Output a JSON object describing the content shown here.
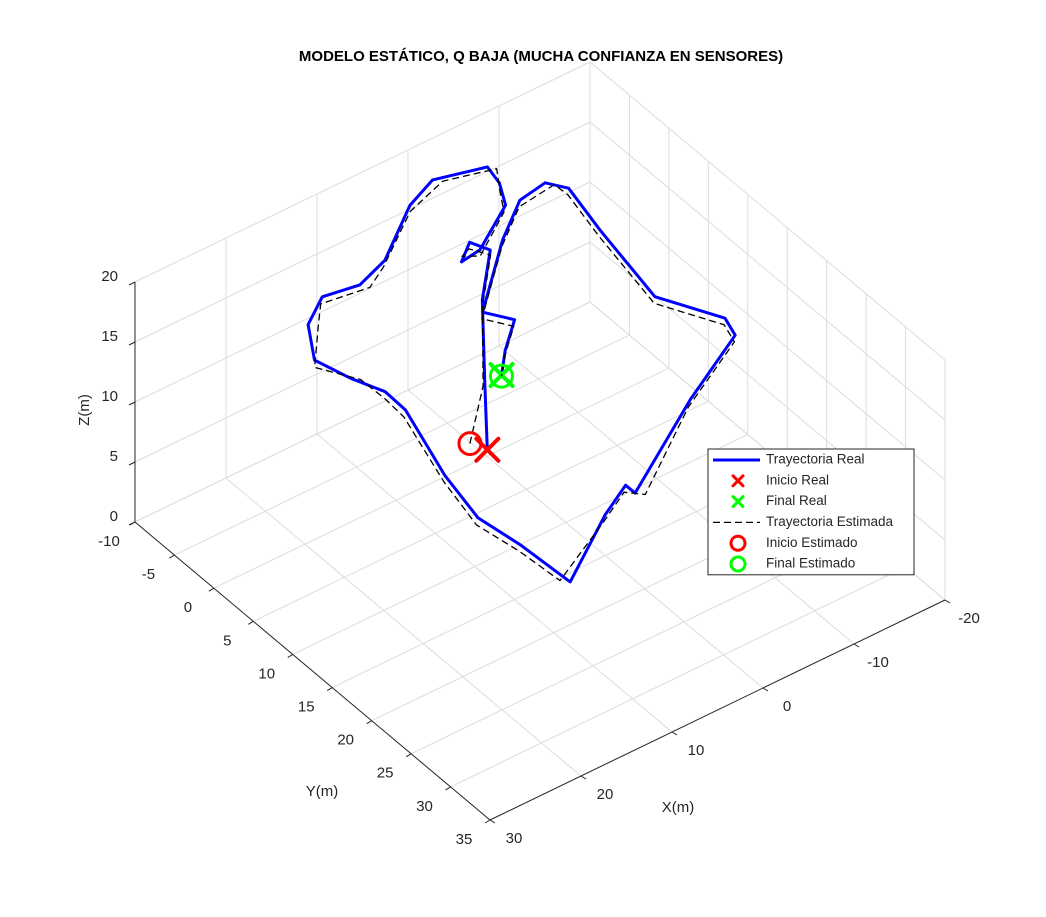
{
  "chart_data": {
    "type": "line3d",
    "title": "MODELO ESTÁTICO, Q BAJA (MUCHA CONFIANZA EN SENSORES)",
    "xlabel": "X(m)",
    "ylabel": "Y(m)",
    "zlabel": "Z(m)",
    "xlim": [
      -20,
      30
    ],
    "ylim": [
      -10,
      35
    ],
    "zlim": [
      0,
      20
    ],
    "xticks": [
      -20,
      -10,
      0,
      10,
      20,
      30
    ],
    "yticks": [
      -10,
      -5,
      0,
      5,
      10,
      15,
      20,
      25,
      30,
      35
    ],
    "zticks": [
      0,
      5,
      10,
      15,
      20
    ],
    "grid": true,
    "legend": "east",
    "series": [
      {
        "name": "Trayectoria Real",
        "color": "#0000ff",
        "linestyle": "solid",
        "x": [
          9.4,
          3.8,
          -2.7,
          -7.4,
          -6.6,
          -4.4,
          -6.7,
          -12.2,
          -13.6,
          -14.1,
          -9.2,
          -5.5,
          0.8,
          4.6,
          8.2,
          11.5,
          14.0,
          13.0,
          11.7,
          11.8,
          14.5,
          15.7,
          15.0,
          14.6,
          6.6,
          2.7,
          2.7,
          -8.9,
          -17.4,
          -18.1,
          -15.0,
          -16.7,
          -18.0,
          -16.8,
          -13.6,
          -9.1,
          -1.7,
          -3.3,
          -0.1,
          2.2
        ],
        "y": [
          10.9,
          4.1,
          -3.7,
          -8.1,
          -9.8,
          -8.3,
          -8.6,
          -11.7,
          -14.1,
          -16.2,
          -17.5,
          -16.1,
          -12.0,
          -10.8,
          -11.4,
          -9.4,
          -5.7,
          -2.3,
          0.6,
          3.3,
          11.4,
          17.0,
          21.5,
          27.4,
          22.6,
          20.7,
          21.9,
          15.5,
          11.4,
          9.3,
          4.0,
          -4.9,
          -10.4,
          -12.0,
          -11.5,
          -8.5,
          -2.5,
          -0.3,
          2.2,
          4.4
        ],
        "z": [
          10,
          10,
          10,
          10,
          10,
          10,
          10,
          10,
          10,
          10,
          10,
          10,
          10,
          10,
          10,
          10,
          10,
          10,
          10,
          10,
          10,
          10,
          10,
          10,
          10,
          10,
          10,
          10,
          10,
          10,
          10,
          10,
          10,
          10,
          10,
          10,
          10,
          10,
          10,
          10
        ]
      },
      {
        "name": "Inicio Real",
        "color": "#ff0000",
        "marker": "x",
        "x": [
          9.4
        ],
        "y": [
          10.9
        ],
        "z": [
          10
        ]
      },
      {
        "name": "Final Real",
        "color": "#00ff00",
        "marker": "x",
        "x": [
          2.2
        ],
        "y": [
          4.4
        ],
        "z": [
          10
        ]
      },
      {
        "name": "Trayectoria Estimada",
        "color": "#000000",
        "linestyle": "dashed",
        "x": [
          10.1,
          4.4,
          -2.2,
          -7.0,
          -6.0,
          -4.9,
          -6.2,
          -11.5,
          -13.1,
          -14.6,
          -9.8,
          -5.0,
          1.5,
          4.1,
          8.9,
          11.0,
          14.6,
          12.4,
          12.3,
          12.5,
          15.1,
          16.4,
          15.6,
          15.2,
          7.3,
          3.4,
          2.1,
          -8.2,
          -16.8,
          -17.5,
          -14.4,
          -16.1,
          -17.4,
          -17.3,
          -13.0,
          -8.5,
          -1.1,
          -2.7,
          0.5,
          2.3
        ],
        "y": [
          9.5,
          4.6,
          -3.1,
          -7.6,
          -9.2,
          -8.8,
          -8.0,
          -11.1,
          -13.5,
          -15.6,
          -16.9,
          -15.5,
          -11.4,
          -10.1,
          -10.8,
          -8.7,
          -5.0,
          -1.7,
          1.3,
          3.9,
          12.0,
          17.6,
          22.1,
          26.8,
          23.2,
          21.3,
          22.5,
          16.1,
          12.0,
          9.9,
          4.6,
          -4.3,
          -9.8,
          -11.4,
          -10.9,
          -7.9,
          -1.9,
          0.3,
          2.8,
          4.5
        ],
        "z": [
          10,
          10,
          10,
          10,
          10,
          10,
          10,
          10,
          10,
          10,
          10,
          10,
          10,
          10,
          10,
          10,
          10,
          10,
          10,
          10,
          10,
          10,
          10,
          10,
          10,
          10,
          10,
          10,
          10,
          10,
          10,
          10,
          10,
          10,
          10,
          10,
          10,
          10,
          10,
          10
        ]
      },
      {
        "name": "Inicio Estimado",
        "color": "#ff0000",
        "marker": "o",
        "x": [
          10.1
        ],
        "y": [
          9.5
        ],
        "z": [
          10
        ]
      },
      {
        "name": "Final Estimado",
        "color": "#00ff00",
        "marker": "o",
        "x": [
          2.3
        ],
        "y": [
          4.5
        ],
        "z": [
          10
        ]
      }
    ]
  }
}
